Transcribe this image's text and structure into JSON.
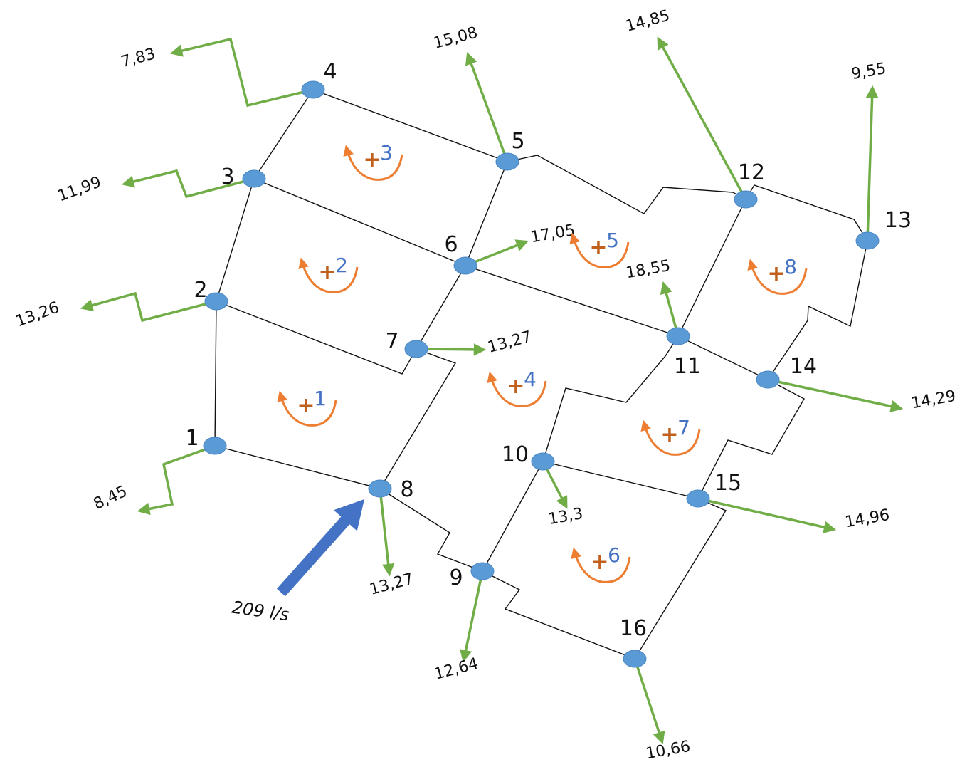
{
  "colors": {
    "pipe": "#111111",
    "node": "#5b9bd5",
    "demand_arrow": "#70ad47",
    "loop_arrow": "#ed7d31",
    "supply_arrow": "#4472c4"
  },
  "nodes": [
    {
      "id": "1",
      "label": "1"
    },
    {
      "id": "2",
      "label": "2"
    },
    {
      "id": "3",
      "label": "3"
    },
    {
      "id": "4",
      "label": "4"
    },
    {
      "id": "5",
      "label": "5"
    },
    {
      "id": "6",
      "label": "6"
    },
    {
      "id": "7",
      "label": "7"
    },
    {
      "id": "8",
      "label": "8"
    },
    {
      "id": "9",
      "label": "9"
    },
    {
      "id": "10",
      "label": "10"
    },
    {
      "id": "11",
      "label": "11"
    },
    {
      "id": "12",
      "label": "12"
    },
    {
      "id": "13",
      "label": "13"
    },
    {
      "id": "14",
      "label": "14"
    },
    {
      "id": "15",
      "label": "15"
    },
    {
      "id": "16",
      "label": "16"
    }
  ],
  "pipes": [
    [
      "1",
      "2"
    ],
    [
      "2",
      "3"
    ],
    [
      "3",
      "4"
    ],
    [
      "4",
      "5"
    ],
    [
      "3",
      "6"
    ],
    [
      "5",
      "6"
    ],
    [
      "2",
      "7"
    ],
    [
      "6",
      "7"
    ],
    [
      "1",
      "8"
    ],
    [
      "7",
      "8"
    ],
    [
      "6",
      "11"
    ],
    [
      "5",
      "12"
    ],
    [
      "11",
      "12"
    ],
    [
      "12",
      "13"
    ],
    [
      "11",
      "14"
    ],
    [
      "13",
      "14"
    ],
    [
      "8",
      "9"
    ],
    [
      "9",
      "10"
    ],
    [
      "10",
      "11"
    ],
    [
      "10",
      "15"
    ],
    [
      "14",
      "15"
    ],
    [
      "9",
      "16"
    ],
    [
      "15",
      "16"
    ]
  ],
  "demands": [
    {
      "node": "1",
      "value": "8,45"
    },
    {
      "node": "2",
      "value": "13,26"
    },
    {
      "node": "3",
      "value": "11,99"
    },
    {
      "node": "4",
      "value": "7,83"
    },
    {
      "node": "5",
      "value": "15,08"
    },
    {
      "node": "6",
      "value": "17,05"
    },
    {
      "node": "7",
      "value": "13,27"
    },
    {
      "node": "8",
      "value": "13,27"
    },
    {
      "node": "9",
      "value": "12,64"
    },
    {
      "node": "10",
      "value": "13,3"
    },
    {
      "node": "11",
      "value": "18,55"
    },
    {
      "node": "12",
      "value": "14,85"
    },
    {
      "node": "13",
      "value": "9,55"
    },
    {
      "node": "14",
      "value": "14,29"
    },
    {
      "node": "15",
      "value": "14,96"
    },
    {
      "node": "16",
      "value": "10,66"
    }
  ],
  "supply": {
    "node": "8",
    "label": "209 l/s"
  },
  "loops": [
    {
      "id": "1",
      "sign": "+",
      "number": "1"
    },
    {
      "id": "2",
      "sign": "+",
      "number": "2"
    },
    {
      "id": "3",
      "sign": "+",
      "number": "3"
    },
    {
      "id": "4",
      "sign": "+",
      "number": "4"
    },
    {
      "id": "5",
      "sign": "+",
      "number": "5"
    },
    {
      "id": "6",
      "sign": "+",
      "number": "6"
    },
    {
      "id": "7",
      "sign": "+",
      "number": "7"
    },
    {
      "id": "8",
      "sign": "+",
      "number": "8"
    }
  ]
}
